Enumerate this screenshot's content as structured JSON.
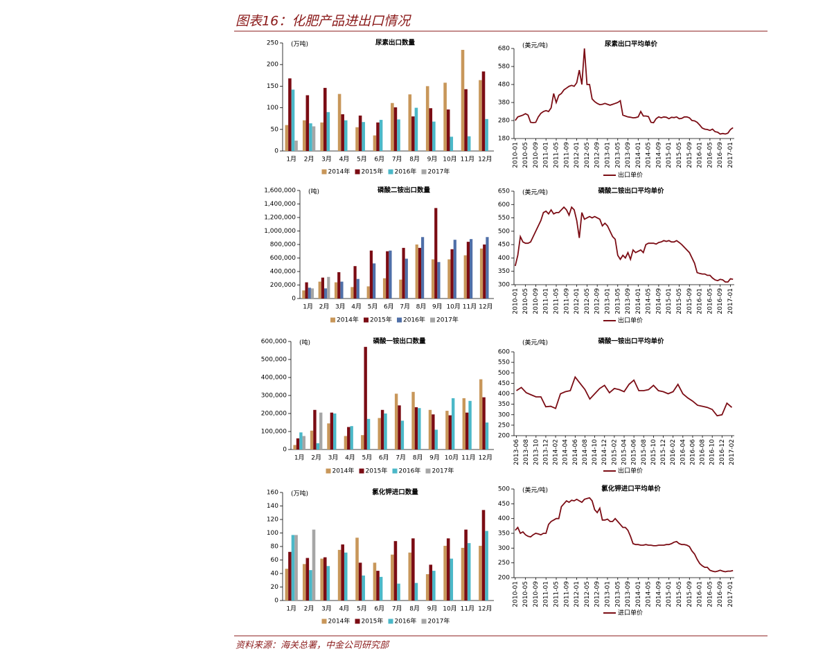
{
  "header": {
    "title": "图表16：化肥产品进出口情况"
  },
  "footer": {
    "source": "资料来源：海关总署，中金公司研究部"
  },
  "chart_data": [
    {
      "type": "bar",
      "title": "尿素出口数量",
      "unit_label": "(万吨)",
      "categories": [
        "1月",
        "2月",
        "3月",
        "4月",
        "5月",
        "6月",
        "7月",
        "8月",
        "9月",
        "10月",
        "11月",
        "12月"
      ],
      "series": [
        {
          "name": "2014年",
          "color": "#c8975a",
          "values": [
            60,
            71,
            66,
            132,
            55,
            36,
            111,
            131,
            150,
            158,
            234,
            164
          ]
        },
        {
          "name": "2015年",
          "color": "#7b0c14",
          "values": [
            168,
            129,
            146,
            85,
            82,
            66,
            101,
            80,
            99,
            96,
            143,
            184
          ]
        },
        {
          "name": "2016年",
          "color": "#4bb8c8",
          "values": [
            142,
            64,
            90,
            71,
            67,
            72,
            73,
            100,
            68,
            33,
            34,
            74
          ]
        },
        {
          "name": "2017年",
          "color": "#a6a6a6",
          "values": [
            24,
            57,
            null,
            null,
            null,
            null,
            null,
            null,
            null,
            null,
            null,
            null
          ]
        }
      ],
      "ylim": [
        0,
        250
      ],
      "yticks": [
        0,
        50,
        100,
        150,
        200,
        250
      ]
    },
    {
      "type": "line",
      "title": "尿素出口平均单价",
      "unit_label": "(美元/吨)",
      "categories": [
        "2010-01",
        null,
        null,
        null,
        "2010-05",
        null,
        null,
        null,
        "2010-09",
        null,
        null,
        null,
        "2011-01",
        null,
        null,
        null,
        "2011-05",
        null,
        null,
        null,
        "2011-09",
        null,
        null,
        null,
        "2012-01",
        null,
        null,
        null,
        "2012-05",
        null,
        null,
        null,
        "2012-09",
        null,
        null,
        null,
        "2013-01",
        null,
        null,
        null,
        "2013-05",
        null,
        null,
        null,
        "2013-09",
        null,
        null,
        null,
        "2014-01",
        null,
        null,
        null,
        "2014-05",
        null,
        null,
        null,
        "2014-09",
        null,
        null,
        null,
        "2015-01",
        null,
        null,
        null,
        "2015-05",
        null,
        null,
        null,
        "2015-09",
        null,
        null,
        null,
        "2016-01",
        null,
        null,
        null,
        "2016-05",
        null,
        null,
        null,
        "2016-09",
        null,
        null,
        null,
        "2017-01",
        null
      ],
      "series": [
        {
          "name": "出口单价",
          "color": "#7b0c14",
          "values": [
            280,
            300,
            305,
            310,
            318,
            310,
            270,
            268,
            270,
            300,
            320,
            330,
            335,
            330,
            350,
            430,
            380,
            420,
            430,
            450,
            460,
            470,
            475,
            470,
            490,
            560,
            480,
            680,
            480,
            480,
            400,
            385,
            375,
            368,
            370,
            375,
            370,
            365,
            370,
            375,
            380,
            390,
            310,
            305,
            300,
            298,
            295,
            296,
            300,
            330,
            305,
            305,
            302,
            270,
            268,
            290,
            300,
            295,
            300,
            298,
            290,
            298,
            296,
            300,
            290,
            292,
            300,
            300,
            295,
            280,
            278,
            270,
            255,
            238,
            232,
            230,
            225,
            232,
            218,
            215,
            205,
            208,
            205,
            210,
            230,
            240
          ]
        }
      ],
      "ylim": [
        180,
        680
      ],
      "yticks": [
        180,
        280,
        380,
        480,
        580,
        680
      ]
    },
    {
      "type": "bar",
      "title": "磷酸二铵出口数量",
      "unit_label": "(吨)",
      "categories": [
        "1月",
        "2月",
        "3月",
        "4月",
        "5月",
        "6月",
        "7月",
        "8月",
        "9月",
        "10月",
        "11月",
        "12月"
      ],
      "series": [
        {
          "name": "2014年",
          "color": "#c8975a",
          "values": [
            120000,
            250000,
            240000,
            170000,
            180000,
            300000,
            280000,
            800000,
            580000,
            580000,
            640000,
            740000
          ]
        },
        {
          "name": "2015年",
          "color": "#7b0c14",
          "values": [
            240000,
            310000,
            390000,
            480000,
            710000,
            700000,
            750000,
            750000,
            1340000,
            730000,
            840000,
            800000
          ]
        },
        {
          "name": "2016年",
          "color": "#4f6fa8",
          "values": [
            160000,
            150000,
            250000,
            290000,
            520000,
            710000,
            590000,
            910000,
            540000,
            870000,
            880000,
            910000
          ]
        },
        {
          "name": "2017年",
          "color": "#a6a6a6",
          "values": [
            150000,
            320000,
            null,
            null,
            null,
            null,
            null,
            null,
            null,
            null,
            null,
            null
          ]
        }
      ],
      "ylim": [
        0,
        1600000
      ],
      "yticks": [
        0,
        {
          "value": 200000,
          "label": "200,000"
        },
        {
          "value": 400000,
          "label": "400,000"
        },
        {
          "value": 600000,
          "label": "600,000"
        },
        {
          "value": 800000,
          "label": "800,000"
        },
        {
          "value": 1000000,
          "label": "1,000,000"
        },
        {
          "value": 1200000,
          "label": "1,200,000"
        },
        {
          "value": 1400000,
          "label": "1,400,000"
        },
        {
          "value": 1600000,
          "label": "1,600,000"
        }
      ]
    },
    {
      "type": "line",
      "title": "磷酸二铵出口平均单价",
      "unit_label": "(美元/吨)",
      "categories": [
        "2010-01",
        null,
        null,
        null,
        "2010-05",
        null,
        null,
        null,
        "2010-09",
        null,
        null,
        null,
        "2011-01",
        null,
        null,
        null,
        "2011-05",
        null,
        null,
        null,
        "2011-09",
        null,
        null,
        null,
        "2012-01",
        null,
        null,
        null,
        "2012-05",
        null,
        null,
        null,
        "2012-09",
        null,
        null,
        null,
        "2013-01",
        null,
        null,
        null,
        "2013-05",
        null,
        null,
        null,
        "2013-09",
        null,
        null,
        null,
        "2014-01",
        null,
        null,
        null,
        "2014-05",
        null,
        null,
        null,
        "2014-09",
        null,
        null,
        null,
        "2015-01",
        null,
        null,
        null,
        "2015-05",
        null,
        null,
        null,
        "2015-09",
        null,
        null,
        null,
        "2016-01",
        null,
        null,
        null,
        "2016-05",
        null,
        null,
        null,
        "2016-09",
        null,
        null,
        null,
        "2017-01",
        null
      ],
      "series": [
        {
          "name": "出口单价",
          "color": "#7b0c14",
          "values": [
            370,
            410,
            480,
            460,
            455,
            455,
            460,
            480,
            500,
            520,
            540,
            570,
            575,
            565,
            580,
            565,
            570,
            570,
            580,
            590,
            580,
            560,
            590,
            580,
            540,
            475,
            570,
            545,
            550,
            555,
            550,
            555,
            550,
            545,
            520,
            530,
            520,
            500,
            480,
            470,
            410,
            395,
            410,
            400,
            420,
            395,
            430,
            420,
            425,
            430,
            420,
            450,
            455,
            455,
            455,
            452,
            458,
            460,
            465,
            462,
            465,
            460,
            460,
            465,
            458,
            450,
            440,
            430,
            420,
            400,
            380,
            345,
            342,
            340,
            340,
            335,
            335,
            325,
            318,
            315,
            320,
            318,
            310,
            310,
            322,
            320
          ]
        }
      ],
      "ylim": [
        300,
        650
      ],
      "yticks": [
        300,
        350,
        400,
        450,
        500,
        550,
        600,
        650
      ]
    },
    {
      "type": "bar",
      "title": "磷酸一铵出口数量",
      "unit_label": "(吨)",
      "categories": [
        "1月",
        "2月",
        "3月",
        "4月",
        "5月",
        "6月",
        "7月",
        "8月",
        "9月",
        "10月",
        "11月",
        "12月"
      ],
      "series": [
        {
          "name": "2014年",
          "color": "#c8975a",
          "values": [
            25000,
            105000,
            145000,
            75000,
            80000,
            175000,
            310000,
            320000,
            220000,
            215000,
            285000,
            390000
          ]
        },
        {
          "name": "2015年",
          "color": "#7b0c14",
          "values": [
            62000,
            220000,
            205000,
            125000,
            570000,
            220000,
            245000,
            235000,
            195000,
            190000,
            205000,
            290000
          ]
        },
        {
          "name": "2016年",
          "color": "#4bb8c8",
          "values": [
            95000,
            35000,
            200000,
            130000,
            170000,
            200000,
            160000,
            230000,
            110000,
            285000,
            270000,
            150000
          ]
        },
        {
          "name": "2017年",
          "color": "#a6a6a6",
          "values": [
            75000,
            205000,
            null,
            null,
            null,
            null,
            null,
            null,
            null,
            null,
            null,
            null
          ]
        }
      ],
      "ylim": [
        0,
        600000
      ],
      "yticks": [
        0,
        {
          "value": 100000,
          "label": "100,000"
        },
        {
          "value": 200000,
          "label": "200,000"
        },
        {
          "value": 300000,
          "label": "300,000"
        },
        {
          "value": 400000,
          "label": "400,000"
        },
        {
          "value": 500000,
          "label": "500,000"
        },
        {
          "value": 600000,
          "label": "600,000"
        }
      ]
    },
    {
      "type": "line",
      "title": "磷酸一铵出口平均单价",
      "unit_label": "(美元/吨)",
      "categories": [
        "2013-06",
        null,
        "2013-08",
        null,
        "2013-10",
        null,
        "2013-12",
        null,
        "2014-02",
        null,
        "2014-04",
        null,
        "2014-06",
        null,
        "2014-08",
        null,
        "2014-10",
        null,
        "2014-12",
        null,
        "2015-02",
        null,
        "2015-04",
        null,
        "2015-06",
        null,
        "2015-08",
        null,
        "2015-10",
        null,
        "2015-12",
        null,
        "2016-02",
        null,
        "2016-04",
        null,
        "2016-06",
        null,
        "2016-08",
        null,
        "2016-10",
        null,
        "2016-12",
        null,
        "2017-02"
      ],
      "series": [
        {
          "name": "出口单价",
          "color": "#7b0c14",
          "values": [
            415,
            430,
            405,
            395,
            385,
            385,
            338,
            340,
            330,
            400,
            410,
            415,
            480,
            450,
            420,
            375,
            400,
            425,
            440,
            405,
            425,
            420,
            410,
            445,
            465,
            415,
            415,
            420,
            440,
            415,
            410,
            400,
            410,
            445,
            400,
            380,
            365,
            345,
            340,
            335,
            325,
            295,
            300,
            355,
            335
          ]
        }
      ],
      "ylim": [
        200,
        600
      ],
      "yticks": [
        200,
        250,
        300,
        350,
        400,
        450,
        500,
        550,
        600
      ]
    },
    {
      "type": "bar",
      "title": "氯化钾进口数量",
      "unit_label": "(万吨)",
      "categories": [
        "1月",
        "2月",
        "3月",
        "4月",
        "5月",
        "6月",
        "7月",
        "8月",
        "9月",
        "10月",
        "11月",
        "12月"
      ],
      "series": [
        {
          "name": "2014年",
          "color": "#c8975a",
          "values": [
            47,
            54,
            62,
            75,
            93,
            56,
            68,
            71,
            39,
            81,
            78,
            81
          ]
        },
        {
          "name": "2015年",
          "color": "#7b0c14",
          "values": [
            72,
            63,
            64,
            83,
            56,
            44,
            88,
            92,
            53,
            92,
            105,
            134
          ]
        },
        {
          "name": "2016年",
          "color": "#4bb8c8",
          "values": [
            97,
            45,
            51,
            71,
            37,
            35,
            25,
            26,
            44,
            62,
            85,
            103
          ]
        },
        {
          "name": "2017年",
          "color": "#a6a6a6",
          "values": [
            97,
            105,
            null,
            null,
            null,
            null,
            null,
            null,
            null,
            null,
            null,
            null
          ]
        }
      ],
      "ylim": [
        0,
        160
      ],
      "yticks": [
        0,
        20,
        40,
        60,
        80,
        100,
        120,
        140,
        160
      ]
    },
    {
      "type": "line",
      "title": "氯化钾进口平均单价",
      "unit_label": "(美元/吨)",
      "categories": [
        "2010-01",
        null,
        null,
        null,
        "2010-05",
        null,
        null,
        null,
        "2010-09",
        null,
        null,
        null,
        "2011-01",
        null,
        null,
        null,
        "2011-05",
        null,
        null,
        null,
        "2011-09",
        null,
        null,
        null,
        "2012-01",
        null,
        null,
        null,
        "2012-05",
        null,
        null,
        null,
        "2012-09",
        null,
        null,
        null,
        "2013-01",
        null,
        null,
        null,
        "2013-05",
        null,
        null,
        null,
        "2013-09",
        null,
        null,
        null,
        "2014-01",
        null,
        null,
        null,
        "2014-05",
        null,
        null,
        null,
        "2014-09",
        null,
        null,
        null,
        "2015-01",
        null,
        null,
        null,
        "2015-05",
        null,
        null,
        null,
        "2015-09",
        null,
        null,
        null,
        "2016-01",
        null,
        null,
        null,
        "2016-05",
        null,
        null,
        null,
        "2016-09",
        null,
        null,
        null,
        "2017-01",
        null
      ],
      "series": [
        {
          "name": "进口单价",
          "color": "#7b0c14",
          "values": [
            360,
            370,
            350,
            355,
            345,
            340,
            338,
            345,
            350,
            348,
            345,
            350,
            350,
            380,
            390,
            395,
            400,
            400,
            440,
            450,
            460,
            455,
            462,
            460,
            465,
            460,
            455,
            465,
            468,
            470,
            460,
            430,
            420,
            435,
            395,
            395,
            398,
            390,
            390,
            400,
            390,
            380,
            370,
            370,
            360,
            340,
            315,
            312,
            312,
            310,
            310,
            312,
            310,
            310,
            308,
            308,
            310,
            310,
            310,
            312,
            312,
            315,
            320,
            322,
            315,
            312,
            312,
            310,
            305,
            290,
            280,
            262,
            248,
            240,
            235,
            235,
            225,
            222,
            220,
            222,
            225,
            222,
            220,
            222,
            222,
            224
          ]
        }
      ],
      "ylim": [
        200,
        500
      ],
      "yticks": [
        200,
        250,
        300,
        350,
        400,
        450,
        500
      ]
    }
  ]
}
